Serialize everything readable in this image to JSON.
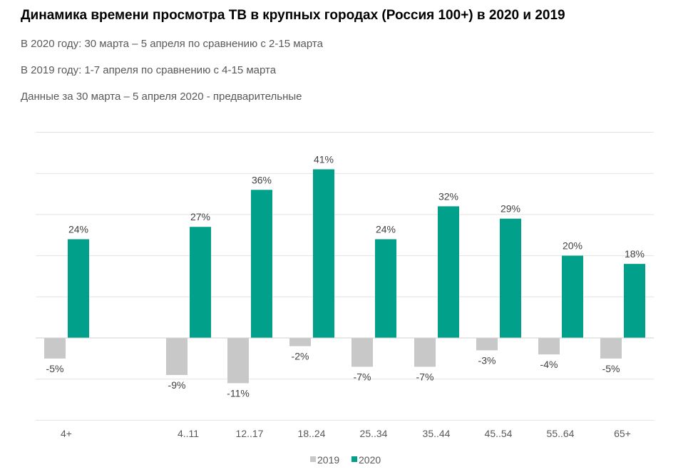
{
  "title": "Динамика времени просмотра ТВ в крупных городах (Россия 100+) в 2020 и 2019",
  "subtitles": [
    "В 2020 году: 30 марта – 5 апреля по сравнению с 2-15 марта",
    "В 2019 году: 1-7 апреля по сравнению с 4-15 марта",
    "Данные за 30 марта – 5 апреля 2020 - предварительные"
  ],
  "colors": {
    "series_2019": "#c8c8c8",
    "series_2020": "#00a08a",
    "grid": "#e3e3e3",
    "axis": "#d0d0d0"
  },
  "chart_data": {
    "type": "bar",
    "categories": [
      "4+",
      "4..11",
      "12..17",
      "18..24",
      "25..34",
      "35..44",
      "45..54",
      "55..64",
      "65+"
    ],
    "series": [
      {
        "name": "2019",
        "values": [
          -5,
          -9,
          -11,
          -2,
          -7,
          -7,
          -3,
          -4,
          -5
        ],
        "labels": [
          "-5%",
          "-9%",
          "-11%",
          "-2%",
          "-7%",
          "-7%",
          "-3%",
          "-4%",
          "-5%"
        ]
      },
      {
        "name": "2020",
        "values": [
          24,
          27,
          36,
          41,
          24,
          32,
          29,
          20,
          18
        ],
        "labels": [
          "24%",
          "27%",
          "36%",
          "41%",
          "24%",
          "32%",
          "29%",
          "20%",
          "18%"
        ]
      }
    ],
    "ylim": [
      -20,
      50
    ],
    "grid": true,
    "legend": "bottom-center",
    "unit": "%"
  }
}
